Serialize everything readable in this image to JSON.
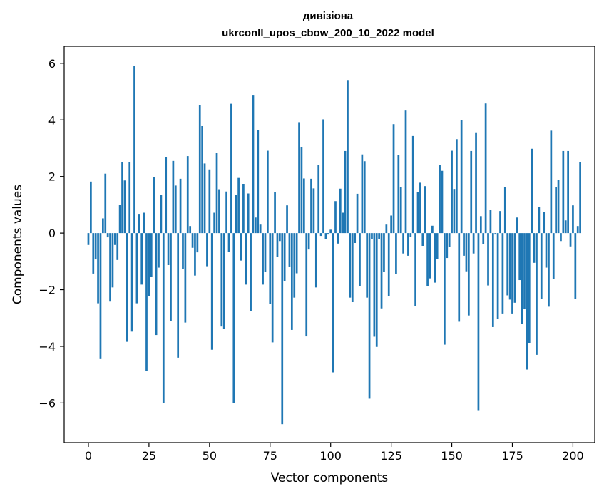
{
  "chart_data": {
    "type": "bar",
    "title": "дивізіона",
    "subtitle": "ukrconll_upos_cbow_200_10_2022 model",
    "xlabel": "Vector components",
    "ylabel": "Components values",
    "xlim": [
      -10,
      209
    ],
    "ylim": [
      -7.4,
      6.6
    ],
    "xticks": [
      0,
      25,
      50,
      75,
      100,
      125,
      150,
      175,
      200
    ],
    "xtick_labels": [
      "0",
      "25",
      "50",
      "75",
      "100",
      "125",
      "150",
      "175",
      "200"
    ],
    "yticks": [
      -6,
      -4,
      -2,
      0,
      2,
      4,
      6
    ],
    "ytick_labels": [
      "−6",
      "−4",
      "−2",
      "0",
      "2",
      "4",
      "6"
    ],
    "bar_color": "#1f77b4",
    "grid": false,
    "values": [
      -0.42,
      1.82,
      -1.43,
      -0.93,
      -2.48,
      -4.45,
      0.52,
      2.1,
      -0.15,
      -2.42,
      -1.92,
      -0.42,
      -0.95,
      1.0,
      2.52,
      1.86,
      -3.84,
      2.5,
      -3.48,
      5.92,
      -2.48,
      0.68,
      -1.82,
      0.72,
      -4.86,
      -2.22,
      -1.55,
      1.98,
      -3.6,
      -1.22,
      1.35,
      -6.0,
      2.68,
      -1.13,
      -3.1,
      2.55,
      1.68,
      -4.4,
      1.92,
      -1.28,
      -3.16,
      2.72,
      0.25,
      -0.52,
      -1.5,
      -0.68,
      4.52,
      3.78,
      2.46,
      -1.17,
      2.25,
      -4.12,
      0.72,
      2.83,
      1.55,
      -3.3,
      -3.38,
      1.47,
      -0.67,
      4.57,
      -6.0,
      1.36,
      1.95,
      -0.97,
      1.74,
      -1.82,
      1.4,
      -2.76,
      4.86,
      0.55,
      3.63,
      0.3,
      -1.82,
      -1.37,
      2.91,
      -2.49,
      -3.86,
      1.44,
      -0.83,
      -0.28,
      -6.75,
      -1.7,
      0.98,
      -1.18,
      -3.42,
      -2.28,
      -1.42,
      3.92,
      3.05,
      1.93,
      -3.65,
      -0.58,
      1.92,
      1.58,
      -1.92,
      2.41,
      -0.1,
      4.02,
      -0.2,
      -0.05,
      0.12,
      -4.92,
      1.13,
      -0.37,
      1.57,
      0.72,
      2.9,
      5.41,
      -2.28,
      -2.44,
      -0.35,
      1.39,
      -1.88,
      2.78,
      2.54,
      -2.28,
      -5.85,
      -0.22,
      -3.66,
      -4.02,
      -0.2,
      -2.66,
      -1.38,
      0.3,
      -2.22,
      0.62,
      3.85,
      -1.44,
      2.75,
      1.63,
      -0.72,
      4.33,
      -0.8,
      -0.13,
      3.43,
      -2.59,
      1.45,
      1.78,
      -0.45,
      1.66,
      -1.87,
      -1.6,
      0.26,
      -1.75,
      -0.92,
      2.42,
      2.2,
      -3.94,
      -0.88,
      -0.5,
      2.91,
      1.56,
      3.32,
      -3.13,
      4.0,
      -0.8,
      -1.35,
      -2.91,
      2.9,
      -0.72,
      3.56,
      -6.28,
      0.6,
      -0.4,
      4.58,
      -1.85,
      0.82,
      -3.32,
      -0.05,
      -3.02,
      0.78,
      -2.84,
      1.62,
      -2.2,
      -2.35,
      -2.84,
      -2.46,
      0.55,
      -1.66,
      -3.2,
      -2.68,
      -4.82,
      -3.9,
      2.98,
      -1.05,
      -4.3,
      0.92,
      -2.33,
      0.75,
      -1.22,
      -2.6,
      3.62,
      -1.62,
      1.62,
      1.88,
      -0.28,
      2.9,
      0.45,
      2.9,
      -0.47,
      0.98,
      -2.33,
      0.25,
      2.5
    ]
  }
}
